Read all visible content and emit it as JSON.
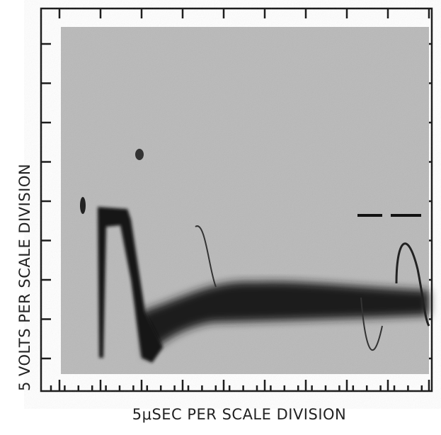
{
  "y_label": "5 VOLTS PER SCALE DIVISION",
  "x_label": "5μSEC PER SCALE DIVISION"
}
